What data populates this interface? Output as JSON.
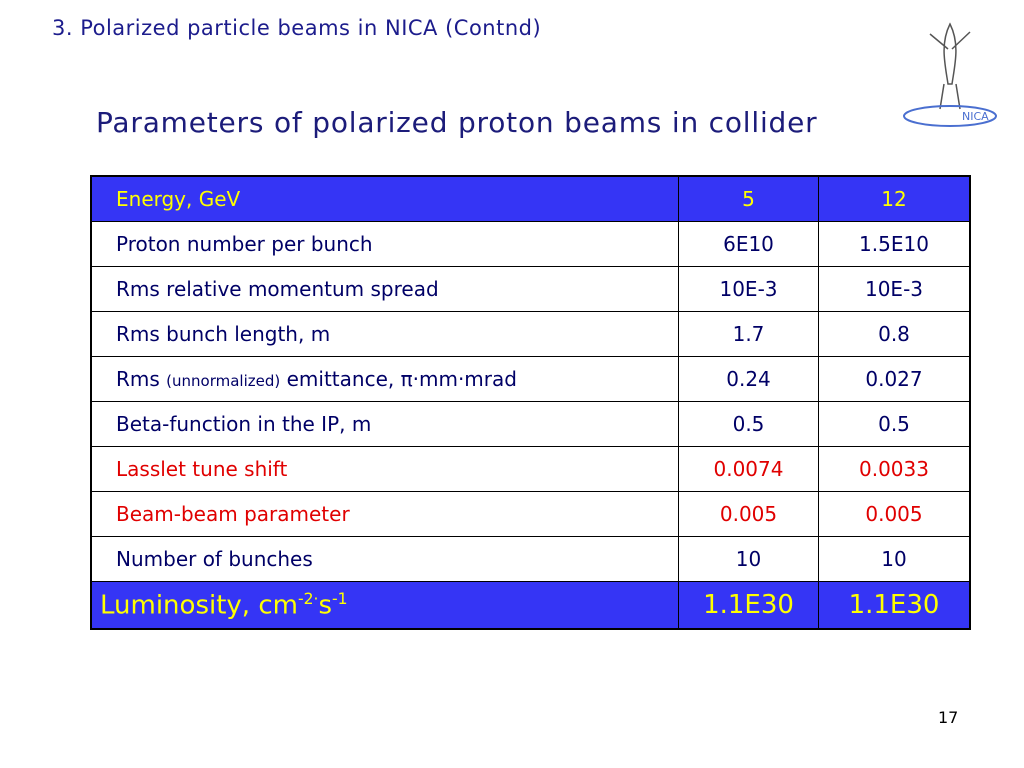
{
  "header": {
    "title": "3. Polarized particle beams in NICA (Contnd)"
  },
  "logo": {
    "label": "NICA"
  },
  "slide": {
    "title": "Parameters of polarized proton beams in collider",
    "page_number": "17"
  },
  "table": {
    "rows": [
      [
        "Energy,  GeV",
        "5",
        "12"
      ],
      [
        "Proton number per bunch",
        "6E10",
        "1.5E10"
      ],
      [
        "Rms relative momentum spread",
        "10E-3",
        "10E-3"
      ],
      [
        "Rms bunch length, m",
        "1.7",
        "0.8"
      ],
      [
        {
          "parts": [
            {
              "text": "Rms",
              "format": "normal"
            },
            {
              "text": "(unnormalized)",
              "format": "small"
            },
            {
              "text": "emittance, π·mm·mrad",
              "format": "normal"
            }
          ]
        },
        "0.24",
        "0.027"
      ],
      [
        "Beta-function in the IP, m",
        "0.5",
        "0.5"
      ],
      [
        "Lasslet tune shift",
        "0.0074",
        "0.0033"
      ],
      [
        "Beam-beam parameter",
        "0.005",
        "0.005"
      ],
      [
        "Number of bunches",
        "10",
        "10"
      ],
      [
        {
          "parts": [
            {
              "text": "Luminosity, cm",
              "format": "normal"
            },
            {
              "text": "-2·",
              "format": "sup"
            },
            {
              "text": "s",
              "format": "normal"
            },
            {
              "text": "-1",
              "format": "sup"
            }
          ]
        },
        "1.1E30",
        "1.1E30"
      ]
    ]
  }
}
